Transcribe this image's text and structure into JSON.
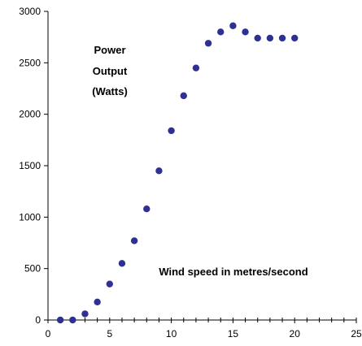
{
  "chart_data": {
    "type": "scatter",
    "title": "",
    "xlabel": "",
    "ylabel": "",
    "xlim": [
      0,
      25
    ],
    "ylim": [
      0,
      3000
    ],
    "x_ticks": [
      0,
      5,
      10,
      15,
      20,
      25
    ],
    "y_ticks": [
      0,
      500,
      1000,
      1500,
      2000,
      2500,
      3000
    ],
    "x_tick_labels": [
      "0",
      "5",
      "10",
      "15",
      "20",
      "25"
    ],
    "y_tick_labels": [
      "0",
      "500",
      "1000",
      "1500",
      "2000",
      "2500",
      "3000"
    ],
    "grid": false,
    "legend": "none",
    "series": [
      {
        "color": "#2e3192",
        "x": [
          1,
          2,
          3,
          4,
          5,
          6,
          7,
          8,
          9,
          10,
          11,
          12,
          13,
          14,
          15,
          16,
          17,
          18,
          19,
          20
        ],
        "y": [
          0,
          0,
          60,
          175,
          350,
          550,
          770,
          1080,
          1450,
          1840,
          2180,
          2450,
          2690,
          2800,
          2860,
          2800,
          2740,
          2740,
          2740,
          2740
        ]
      }
    ],
    "annotations": [
      {
        "lines": [
          "Power",
          "Output",
          "(Watts)"
        ]
      },
      {
        "lines": [
          "Wind speed in metres/second"
        ]
      }
    ]
  }
}
